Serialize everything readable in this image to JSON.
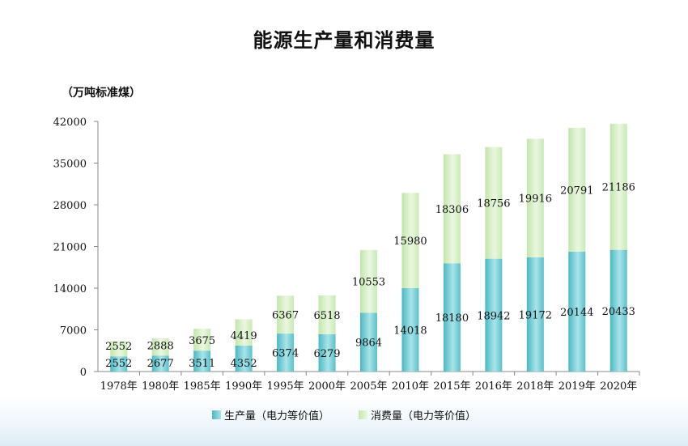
{
  "chart_data": {
    "type": "bar",
    "stacked": true,
    "title": "能源生产量和消费量",
    "ylabel": "（万吨标准煤）",
    "ylim": [
      0,
      42000
    ],
    "yticks": [
      0,
      7000,
      14000,
      21000,
      28000,
      35000,
      42000
    ],
    "categories": [
      "1978年",
      "1980年",
      "1985年",
      "1990年",
      "1995年",
      "2000年",
      "2005年",
      "2010年",
      "2015年",
      "2016年",
      "2018年",
      "2019年",
      "2020年"
    ],
    "series": [
      {
        "name": "生产量（电力等价值）",
        "color": "#7fd0d6",
        "values": [
          2552,
          2677,
          3511,
          4352,
          6374,
          6279,
          9864,
          14018,
          18180,
          18942,
          19172,
          20144,
          20433
        ]
      },
      {
        "name": "消费量（电力等价值）",
        "color": "#d6efc4",
        "values": [
          2552,
          2888,
          3675,
          4419,
          6367,
          6518,
          10553,
          15980,
          18306,
          18756,
          19916,
          20791,
          21186
        ]
      }
    ],
    "legend_position": "bottom",
    "grid": false
  }
}
